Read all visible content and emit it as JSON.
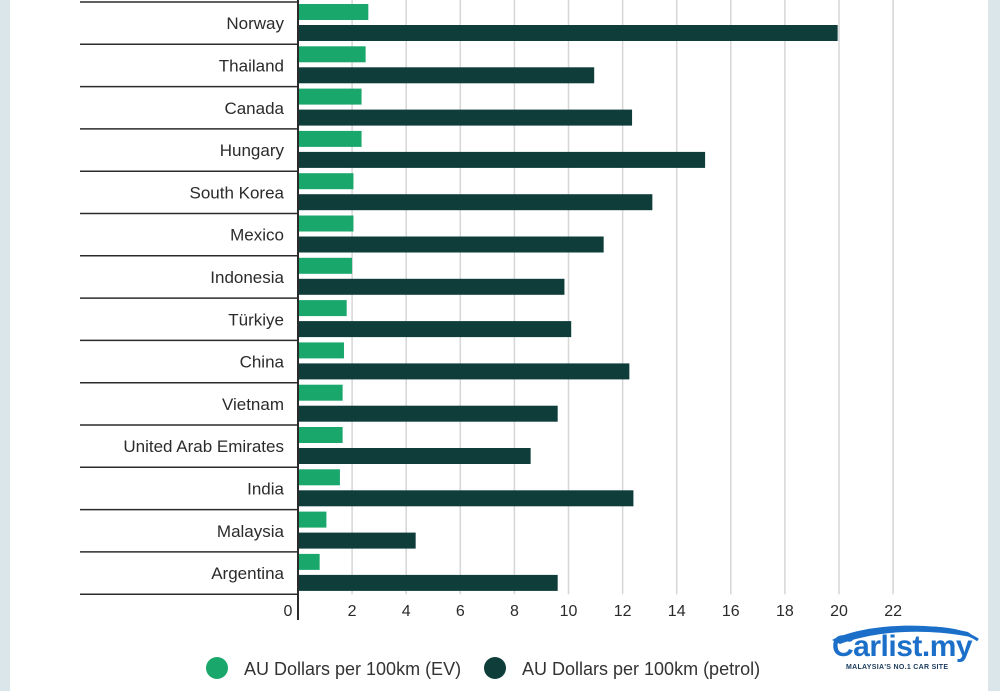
{
  "chart_data": {
    "type": "bar",
    "orientation": "horizontal",
    "categories": [
      "Norway",
      "Thailand",
      "Canada",
      "Hungary",
      "South Korea",
      "Mexico",
      "Indonesia",
      "Türkiye",
      "China",
      "Vietnam",
      "United Arab Emirates",
      "India",
      "Malaysia",
      "Argentina"
    ],
    "series": [
      {
        "name": "AU Dollars per 100km (EV)",
        "color": "#1aa76b",
        "values": [
          2.6,
          2.5,
          2.35,
          2.35,
          2.05,
          2.05,
          2.0,
          1.8,
          1.7,
          1.65,
          1.65,
          1.55,
          1.05,
          0.8
        ]
      },
      {
        "name": "AU Dollars per 100km (petrol)",
        "color": "#0e3d3a",
        "values": [
          19.95,
          10.95,
          12.35,
          15.05,
          13.1,
          11.3,
          9.85,
          10.1,
          12.25,
          9.6,
          8.6,
          12.4,
          4.35,
          9.6
        ]
      }
    ],
    "xticks": [
      0,
      2,
      4,
      6,
      8,
      10,
      12,
      14,
      16,
      18,
      20,
      22
    ],
    "xlim": [
      0,
      22
    ],
    "grid": "vertical",
    "legend_position": "bottom"
  },
  "logo": {
    "text": "Carlist.my",
    "tagline": "MALAYSIA'S NO.1 CAR SITE"
  }
}
